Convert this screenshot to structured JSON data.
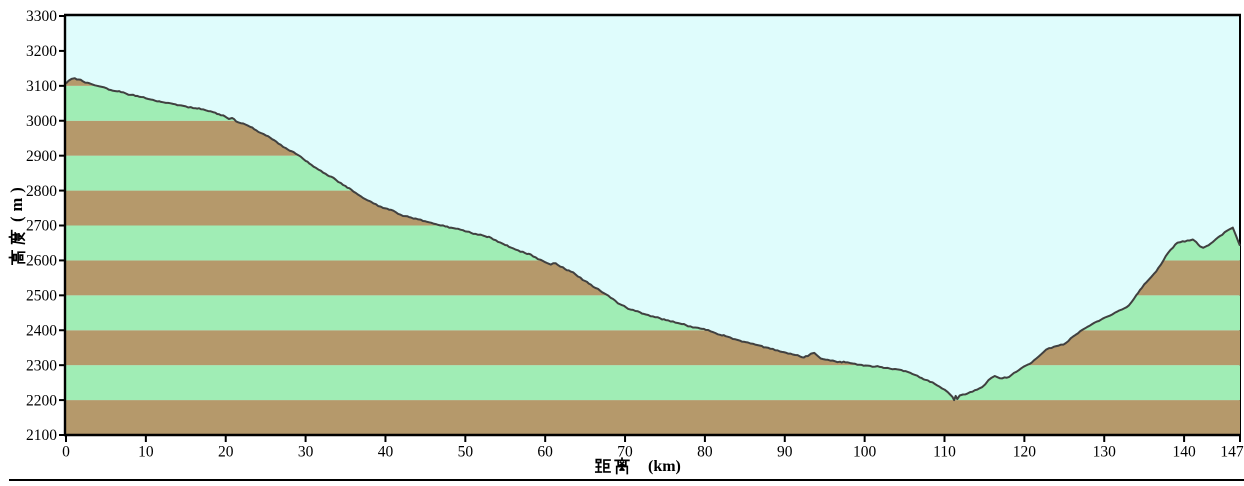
{
  "chart_data": {
    "type": "area",
    "title": "",
    "xlabel": "距离 (km)",
    "ylabel": "高度 (m)",
    "xlim": [
      0,
      147
    ],
    "ylim": [
      2100,
      3300
    ],
    "x_ticks": [
      0,
      10,
      20,
      30,
      40,
      50,
      60,
      70,
      80,
      90,
      100,
      110,
      120,
      130,
      140,
      147
    ],
    "y_ticks": [
      2100,
      2200,
      2300,
      2400,
      2500,
      2600,
      2700,
      2800,
      2900,
      3000,
      3100,
      3200,
      3300
    ],
    "grid": false,
    "legend": false,
    "band_interval_m": 100,
    "colors": {
      "plot_background": "#DFFCFC",
      "band_brown": "#B5996B",
      "band_green": "#A0EDB5",
      "profile_line": "#404040",
      "axis": "#000000",
      "text": "#000000"
    },
    "series": [
      {
        "name": "elevation_profile",
        "points": [
          [
            0,
            3107
          ],
          [
            0.3,
            3114
          ],
          [
            0.7,
            3120
          ],
          [
            1.1,
            3122
          ],
          [
            1.6,
            3118
          ],
          [
            2.1,
            3113
          ],
          [
            2.7,
            3109
          ],
          [
            3.3,
            3104
          ],
          [
            3.9,
            3100
          ],
          [
            4.5,
            3097
          ],
          [
            5.1,
            3093
          ],
          [
            5.6,
            3088
          ],
          [
            6.2,
            3085
          ],
          [
            6.9,
            3082
          ],
          [
            7.5,
            3078
          ],
          [
            8.1,
            3074
          ],
          [
            8.7,
            3071
          ],
          [
            9.4,
            3068
          ],
          [
            10,
            3064
          ],
          [
            10.6,
            3061
          ],
          [
            11.2,
            3057
          ],
          [
            11.9,
            3054
          ],
          [
            12.5,
            3051
          ],
          [
            13.1,
            3050
          ],
          [
            13.7,
            3047
          ],
          [
            14.4,
            3044
          ],
          [
            15,
            3041
          ],
          [
            15.6,
            3039
          ],
          [
            16.2,
            3036
          ],
          [
            16.9,
            3033
          ],
          [
            17.5,
            3030
          ],
          [
            18.1,
            3027
          ],
          [
            18.7,
            3023
          ],
          [
            19.4,
            3016
          ],
          [
            20,
            3011
          ],
          [
            20.4,
            3005
          ],
          [
            20.8,
            3008
          ],
          [
            21.3,
            2998
          ],
          [
            21.9,
            2993
          ],
          [
            22.5,
            2989
          ],
          [
            23.1,
            2982
          ],
          [
            23.8,
            2973
          ],
          [
            24.4,
            2965
          ],
          [
            25,
            2958
          ],
          [
            25.6,
            2951
          ],
          [
            26.3,
            2941
          ],
          [
            26.9,
            2931
          ],
          [
            27.5,
            2922
          ],
          [
            28.2,
            2913
          ],
          [
            28.8,
            2905
          ],
          [
            29.4,
            2897
          ],
          [
            30,
            2885
          ],
          [
            30.7,
            2874
          ],
          [
            31.3,
            2865
          ],
          [
            31.9,
            2857
          ],
          [
            32.5,
            2848
          ],
          [
            33.2,
            2840
          ],
          [
            33.8,
            2831
          ],
          [
            34.4,
            2822
          ],
          [
            35,
            2813
          ],
          [
            35.7,
            2803
          ],
          [
            36.3,
            2793
          ],
          [
            36.9,
            2784
          ],
          [
            37.5,
            2775
          ],
          [
            38.2,
            2768
          ],
          [
            38.8,
            2761
          ],
          [
            39.4,
            2754
          ],
          [
            40,
            2749
          ],
          [
            40.7,
            2745
          ],
          [
            41.3,
            2738
          ],
          [
            41.9,
            2731
          ],
          [
            42.5,
            2727
          ],
          [
            43.2,
            2723
          ],
          [
            43.8,
            2720
          ],
          [
            44.4,
            2717
          ],
          [
            45,
            2712
          ],
          [
            45.7,
            2708
          ],
          [
            46.3,
            2704
          ],
          [
            46.9,
            2700
          ],
          [
            47.5,
            2697
          ],
          [
            48.2,
            2694
          ],
          [
            48.8,
            2691
          ],
          [
            49.4,
            2688
          ],
          [
            50,
            2683
          ],
          [
            50.7,
            2679
          ],
          [
            51.3,
            2676
          ],
          [
            51.9,
            2674
          ],
          [
            52.5,
            2669
          ],
          [
            53.2,
            2665
          ],
          [
            53.8,
            2658
          ],
          [
            54.4,
            2651
          ],
          [
            55,
            2644
          ],
          [
            55.7,
            2637
          ],
          [
            56.3,
            2631
          ],
          [
            56.9,
            2625
          ],
          [
            57.5,
            2621
          ],
          [
            58.2,
            2617
          ],
          [
            58.8,
            2609
          ],
          [
            59.4,
            2602
          ],
          [
            60,
            2595
          ],
          [
            60.7,
            2588
          ],
          [
            61.3,
            2592
          ],
          [
            61.9,
            2582
          ],
          [
            62.5,
            2575
          ],
          [
            63.2,
            2568
          ],
          [
            63.8,
            2560
          ],
          [
            64.4,
            2551
          ],
          [
            65,
            2541
          ],
          [
            65.7,
            2531
          ],
          [
            66.3,
            2521
          ],
          [
            66.9,
            2513
          ],
          [
            67.6,
            2503
          ],
          [
            68.2,
            2493
          ],
          [
            68.8,
            2484
          ],
          [
            69.4,
            2474
          ],
          [
            70.1,
            2466
          ],
          [
            70.7,
            2459
          ],
          [
            71.3,
            2455
          ],
          [
            71.9,
            2451
          ],
          [
            72.6,
            2445
          ],
          [
            73.2,
            2440
          ],
          [
            73.8,
            2437
          ],
          [
            74.4,
            2434
          ],
          [
            75.1,
            2429
          ],
          [
            75.7,
            2425
          ],
          [
            76.3,
            2422
          ],
          [
            76.9,
            2419
          ],
          [
            77.6,
            2415
          ],
          [
            78.2,
            2411
          ],
          [
            78.8,
            2408
          ],
          [
            79.4,
            2405
          ],
          [
            80.1,
            2401
          ],
          [
            80.7,
            2397
          ],
          [
            81.3,
            2392
          ],
          [
            81.9,
            2387
          ],
          [
            82.6,
            2383
          ],
          [
            83.2,
            2379
          ],
          [
            83.8,
            2374
          ],
          [
            84.4,
            2370
          ],
          [
            85.1,
            2366
          ],
          [
            85.7,
            2362
          ],
          [
            86.3,
            2359
          ],
          [
            86.9,
            2356
          ],
          [
            87.6,
            2351
          ],
          [
            88.2,
            2347
          ],
          [
            88.8,
            2343
          ],
          [
            89.4,
            2339
          ],
          [
            90.1,
            2336
          ],
          [
            90.7,
            2333
          ],
          [
            91.3,
            2329
          ],
          [
            91.9,
            2325
          ],
          [
            92.4,
            2322
          ],
          [
            92.9,
            2326
          ],
          [
            93.3,
            2333
          ],
          [
            93.7,
            2335
          ],
          [
            94.1,
            2327
          ],
          [
            94.5,
            2319
          ],
          [
            95.1,
            2316
          ],
          [
            95.7,
            2313
          ],
          [
            96.3,
            2311
          ],
          [
            96.9,
            2310
          ],
          [
            97.6,
            2308
          ],
          [
            98.2,
            2306
          ],
          [
            98.8,
            2304
          ],
          [
            99.4,
            2301
          ],
          [
            100.1,
            2299
          ],
          [
            100.7,
            2298
          ],
          [
            101.3,
            2296
          ],
          [
            101.9,
            2295
          ],
          [
            102.6,
            2292
          ],
          [
            103.2,
            2290
          ],
          [
            103.8,
            2289
          ],
          [
            104.4,
            2287
          ],
          [
            105.1,
            2283
          ],
          [
            105.7,
            2278
          ],
          [
            106.3,
            2272
          ],
          [
            106.9,
            2265
          ],
          [
            107.6,
            2258
          ],
          [
            108.2,
            2252
          ],
          [
            108.8,
            2246
          ],
          [
            109.4,
            2238
          ],
          [
            110,
            2230
          ],
          [
            110.4,
            2223
          ],
          [
            110.7,
            2216
          ],
          [
            111,
            2209
          ],
          [
            111.2,
            2200
          ],
          [
            111.4,
            2212
          ],
          [
            111.6,
            2203
          ],
          [
            111.9,
            2213
          ],
          [
            112.3,
            2216
          ],
          [
            112.9,
            2219
          ],
          [
            113.5,
            2224
          ],
          [
            114.1,
            2230
          ],
          [
            114.7,
            2237
          ],
          [
            115.1,
            2245
          ],
          [
            115.5,
            2257
          ],
          [
            115.9,
            2264
          ],
          [
            116.3,
            2269
          ],
          [
            116.7,
            2265
          ],
          [
            117.2,
            2262
          ],
          [
            117.8,
            2264
          ],
          [
            118.4,
            2272
          ],
          [
            119,
            2281
          ],
          [
            119.6,
            2291
          ],
          [
            120.2,
            2299
          ],
          [
            120.9,
            2307
          ],
          [
            121.5,
            2319
          ],
          [
            122.1,
            2331
          ],
          [
            122.7,
            2344
          ],
          [
            123.1,
            2349
          ],
          [
            123.7,
            2353
          ],
          [
            124.3,
            2356
          ],
          [
            124.9,
            2359
          ],
          [
            125.5,
            2369
          ],
          [
            126.1,
            2382
          ],
          [
            126.7,
            2391
          ],
          [
            127.3,
            2402
          ],
          [
            127.9,
            2410
          ],
          [
            128.5,
            2418
          ],
          [
            129.1,
            2425
          ],
          [
            129.8,
            2433
          ],
          [
            130.4,
            2439
          ],
          [
            131,
            2445
          ],
          [
            131.6,
            2453
          ],
          [
            132.2,
            2459
          ],
          [
            132.8,
            2466
          ],
          [
            133.4,
            2480
          ],
          [
            134,
            2500
          ],
          [
            134.7,
            2521
          ],
          [
            135.3,
            2538
          ],
          [
            135.9,
            2553
          ],
          [
            136.5,
            2568
          ],
          [
            137.1,
            2588
          ],
          [
            137.7,
            2612
          ],
          [
            138.3,
            2630
          ],
          [
            138.9,
            2646
          ],
          [
            139.5,
            2652
          ],
          [
            140.1,
            2654
          ],
          [
            140.7,
            2657
          ],
          [
            141.1,
            2660
          ],
          [
            141.5,
            2653
          ],
          [
            142,
            2640
          ],
          [
            142.4,
            2636
          ],
          [
            142.8,
            2641
          ],
          [
            143.3,
            2648
          ],
          [
            143.9,
            2659
          ],
          [
            144.5,
            2670
          ],
          [
            145.1,
            2681
          ],
          [
            145.7,
            2689
          ],
          [
            146.1,
            2694
          ],
          [
            146.5,
            2671
          ],
          [
            146.8,
            2653
          ],
          [
            147,
            2642
          ]
        ]
      }
    ]
  },
  "labels": {
    "x_axis": {
      "cjk": "距离",
      "unit": "(km)"
    },
    "y_axis": {
      "cjk": "高度",
      "unit": "(m)"
    }
  }
}
